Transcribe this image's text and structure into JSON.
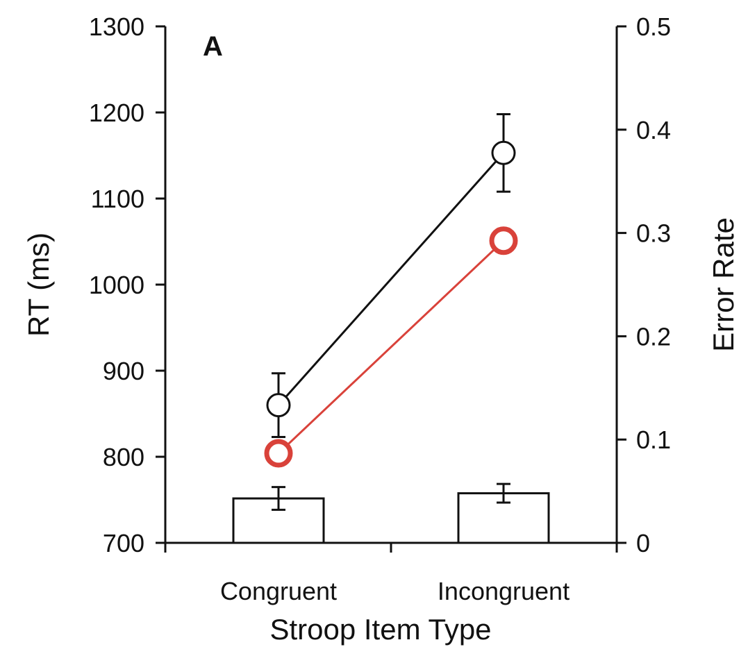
{
  "chart_data": {
    "type": "line",
    "panel_label": "A",
    "categories": [
      "Congruent",
      "Incongruent"
    ],
    "xlabel": "Stroop Item Type",
    "ylabel": "RT (ms)",
    "y2label": "Error Rate",
    "ylim": [
      700,
      1300
    ],
    "y_ticks": [
      "700",
      "800",
      "900",
      "1000",
      "1100",
      "1200",
      "1300"
    ],
    "y2lim": [
      0,
      0.5
    ],
    "y2_ticks": [
      "0",
      "0.1",
      "0.2",
      "0.3",
      "0.4",
      "0.5"
    ],
    "grid": false,
    "bars": {
      "axis": "right",
      "values": [
        0.043,
        0.048
      ],
      "error": [
        0.011,
        0.009
      ]
    },
    "series": [
      {
        "axis": "left",
        "values": [
          860,
          1153
        ],
        "error": [
          37,
          45
        ],
        "color": "#111111",
        "marker_fill": "#ffffff"
      },
      {
        "axis": "left",
        "values": [
          804,
          1051
        ],
        "error": null,
        "color": "#d9423a",
        "marker_fill": "#ffffff"
      }
    ]
  }
}
